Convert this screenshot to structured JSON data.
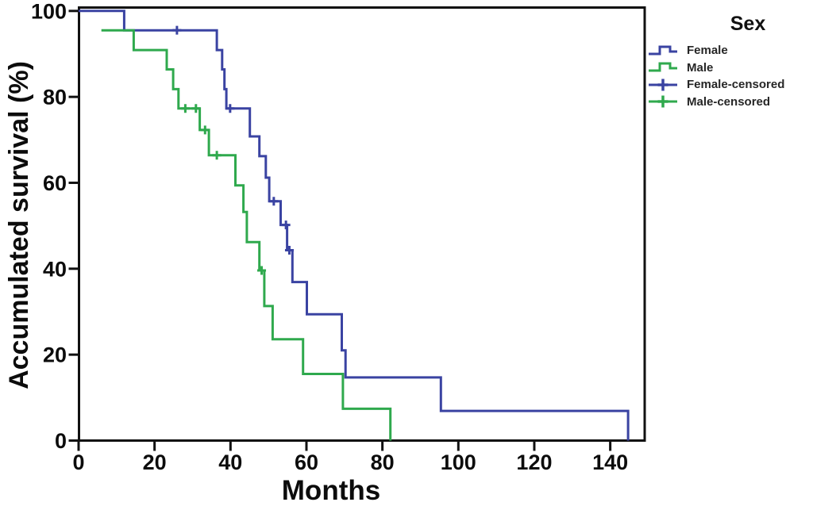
{
  "chart_data": {
    "type": "line",
    "subtype": "kaplan-meier-step-survival",
    "title": "",
    "xlabel": "Months",
    "ylabel": "Accumulated survival (%)",
    "xlim": [
      0,
      149
    ],
    "ylim": [
      0,
      100
    ],
    "xticks": [
      0,
      20,
      40,
      60,
      80,
      100,
      120,
      140
    ],
    "yticks": [
      0,
      20,
      40,
      60,
      80,
      100
    ],
    "grid": false,
    "frame": true,
    "axis_color": "#111111",
    "legend": {
      "title": "Sex",
      "position": "right-outside",
      "items": [
        {
          "label": "Female",
          "swatch": "step-line",
          "color": "#3A43A2"
        },
        {
          "label": "Male",
          "swatch": "step-line",
          "color": "#2FA94D"
        },
        {
          "label": "Female-censored",
          "swatch": "censor-plus",
          "color": "#3A43A2"
        },
        {
          "label": "Male-censored",
          "swatch": "censor-plus",
          "color": "#2FA94D"
        }
      ]
    },
    "series": [
      {
        "name": "Female",
        "color": "#3A43A2",
        "points": [
          [
            0,
            100
          ],
          [
            12,
            100
          ],
          [
            12,
            95.5
          ],
          [
            36.4,
            95.5
          ],
          [
            36.4,
            90.9
          ],
          [
            37.8,
            90.9
          ],
          [
            37.8,
            86.4
          ],
          [
            38.4,
            86.4
          ],
          [
            38.4,
            81.8
          ],
          [
            38.9,
            81.8
          ],
          [
            38.9,
            77.3
          ],
          [
            45.1,
            77.3
          ],
          [
            45.1,
            70.8
          ],
          [
            47.6,
            70.8
          ],
          [
            47.6,
            66.2
          ],
          [
            49.3,
            66.2
          ],
          [
            49.3,
            61.2
          ],
          [
            50.2,
            61.2
          ],
          [
            50.2,
            55.7
          ],
          [
            53.2,
            55.7
          ],
          [
            53.2,
            50.2
          ],
          [
            54.9,
            50.2
          ],
          [
            54.9,
            44.3
          ],
          [
            56.3,
            44.3
          ],
          [
            56.3,
            36.9
          ],
          [
            60.1,
            36.9
          ],
          [
            60.1,
            29.4
          ],
          [
            69.3,
            29.4
          ],
          [
            69.3,
            21.0
          ],
          [
            70.3,
            21.0
          ],
          [
            70.3,
            14.7
          ],
          [
            95.4,
            14.7
          ],
          [
            95.4,
            6.9
          ],
          [
            144.7,
            6.9
          ],
          [
            144.7,
            0
          ]
        ]
      },
      {
        "name": "Male",
        "color": "#2FA94D",
        "points": [
          [
            6,
            95.5
          ],
          [
            14.5,
            95.5
          ],
          [
            14.5,
            90.9
          ],
          [
            23.2,
            90.9
          ],
          [
            23.2,
            86.4
          ],
          [
            24.9,
            86.4
          ],
          [
            24.9,
            81.8
          ],
          [
            26.3,
            81.8
          ],
          [
            26.3,
            77.3
          ],
          [
            31.9,
            77.3
          ],
          [
            31.9,
            72.3
          ],
          [
            34.3,
            72.3
          ],
          [
            34.3,
            66.4
          ],
          [
            41.3,
            66.4
          ],
          [
            41.3,
            59.4
          ],
          [
            43.4,
            59.4
          ],
          [
            43.4,
            53.2
          ],
          [
            44.3,
            53.2
          ],
          [
            44.3,
            46.2
          ],
          [
            47.6,
            46.2
          ],
          [
            47.6,
            39.6
          ],
          [
            48.9,
            39.6
          ],
          [
            48.9,
            31.3
          ],
          [
            51.1,
            31.3
          ],
          [
            51.1,
            23.6
          ],
          [
            59.1,
            23.6
          ],
          [
            59.1,
            15.5
          ],
          [
            69.6,
            15.5
          ],
          [
            69.6,
            7.4
          ],
          [
            82.1,
            7.4
          ],
          [
            82.1,
            0
          ]
        ]
      }
    ],
    "censored": [
      {
        "series": "Female",
        "color": "#3A43A2",
        "marks": [
          [
            25.9,
            95.5
          ],
          [
            39.9,
            77.3
          ],
          [
            51.4,
            55.7
          ],
          [
            54.6,
            50.2
          ],
          [
            55.5,
            44.3
          ]
        ]
      },
      {
        "series": "Male",
        "color": "#2FA94D",
        "marks": [
          [
            28.1,
            77.3
          ],
          [
            30.9,
            77.3
          ],
          [
            33.3,
            72.3
          ],
          [
            36.4,
            66.4
          ],
          [
            48.2,
            39.6
          ]
        ]
      }
    ]
  }
}
